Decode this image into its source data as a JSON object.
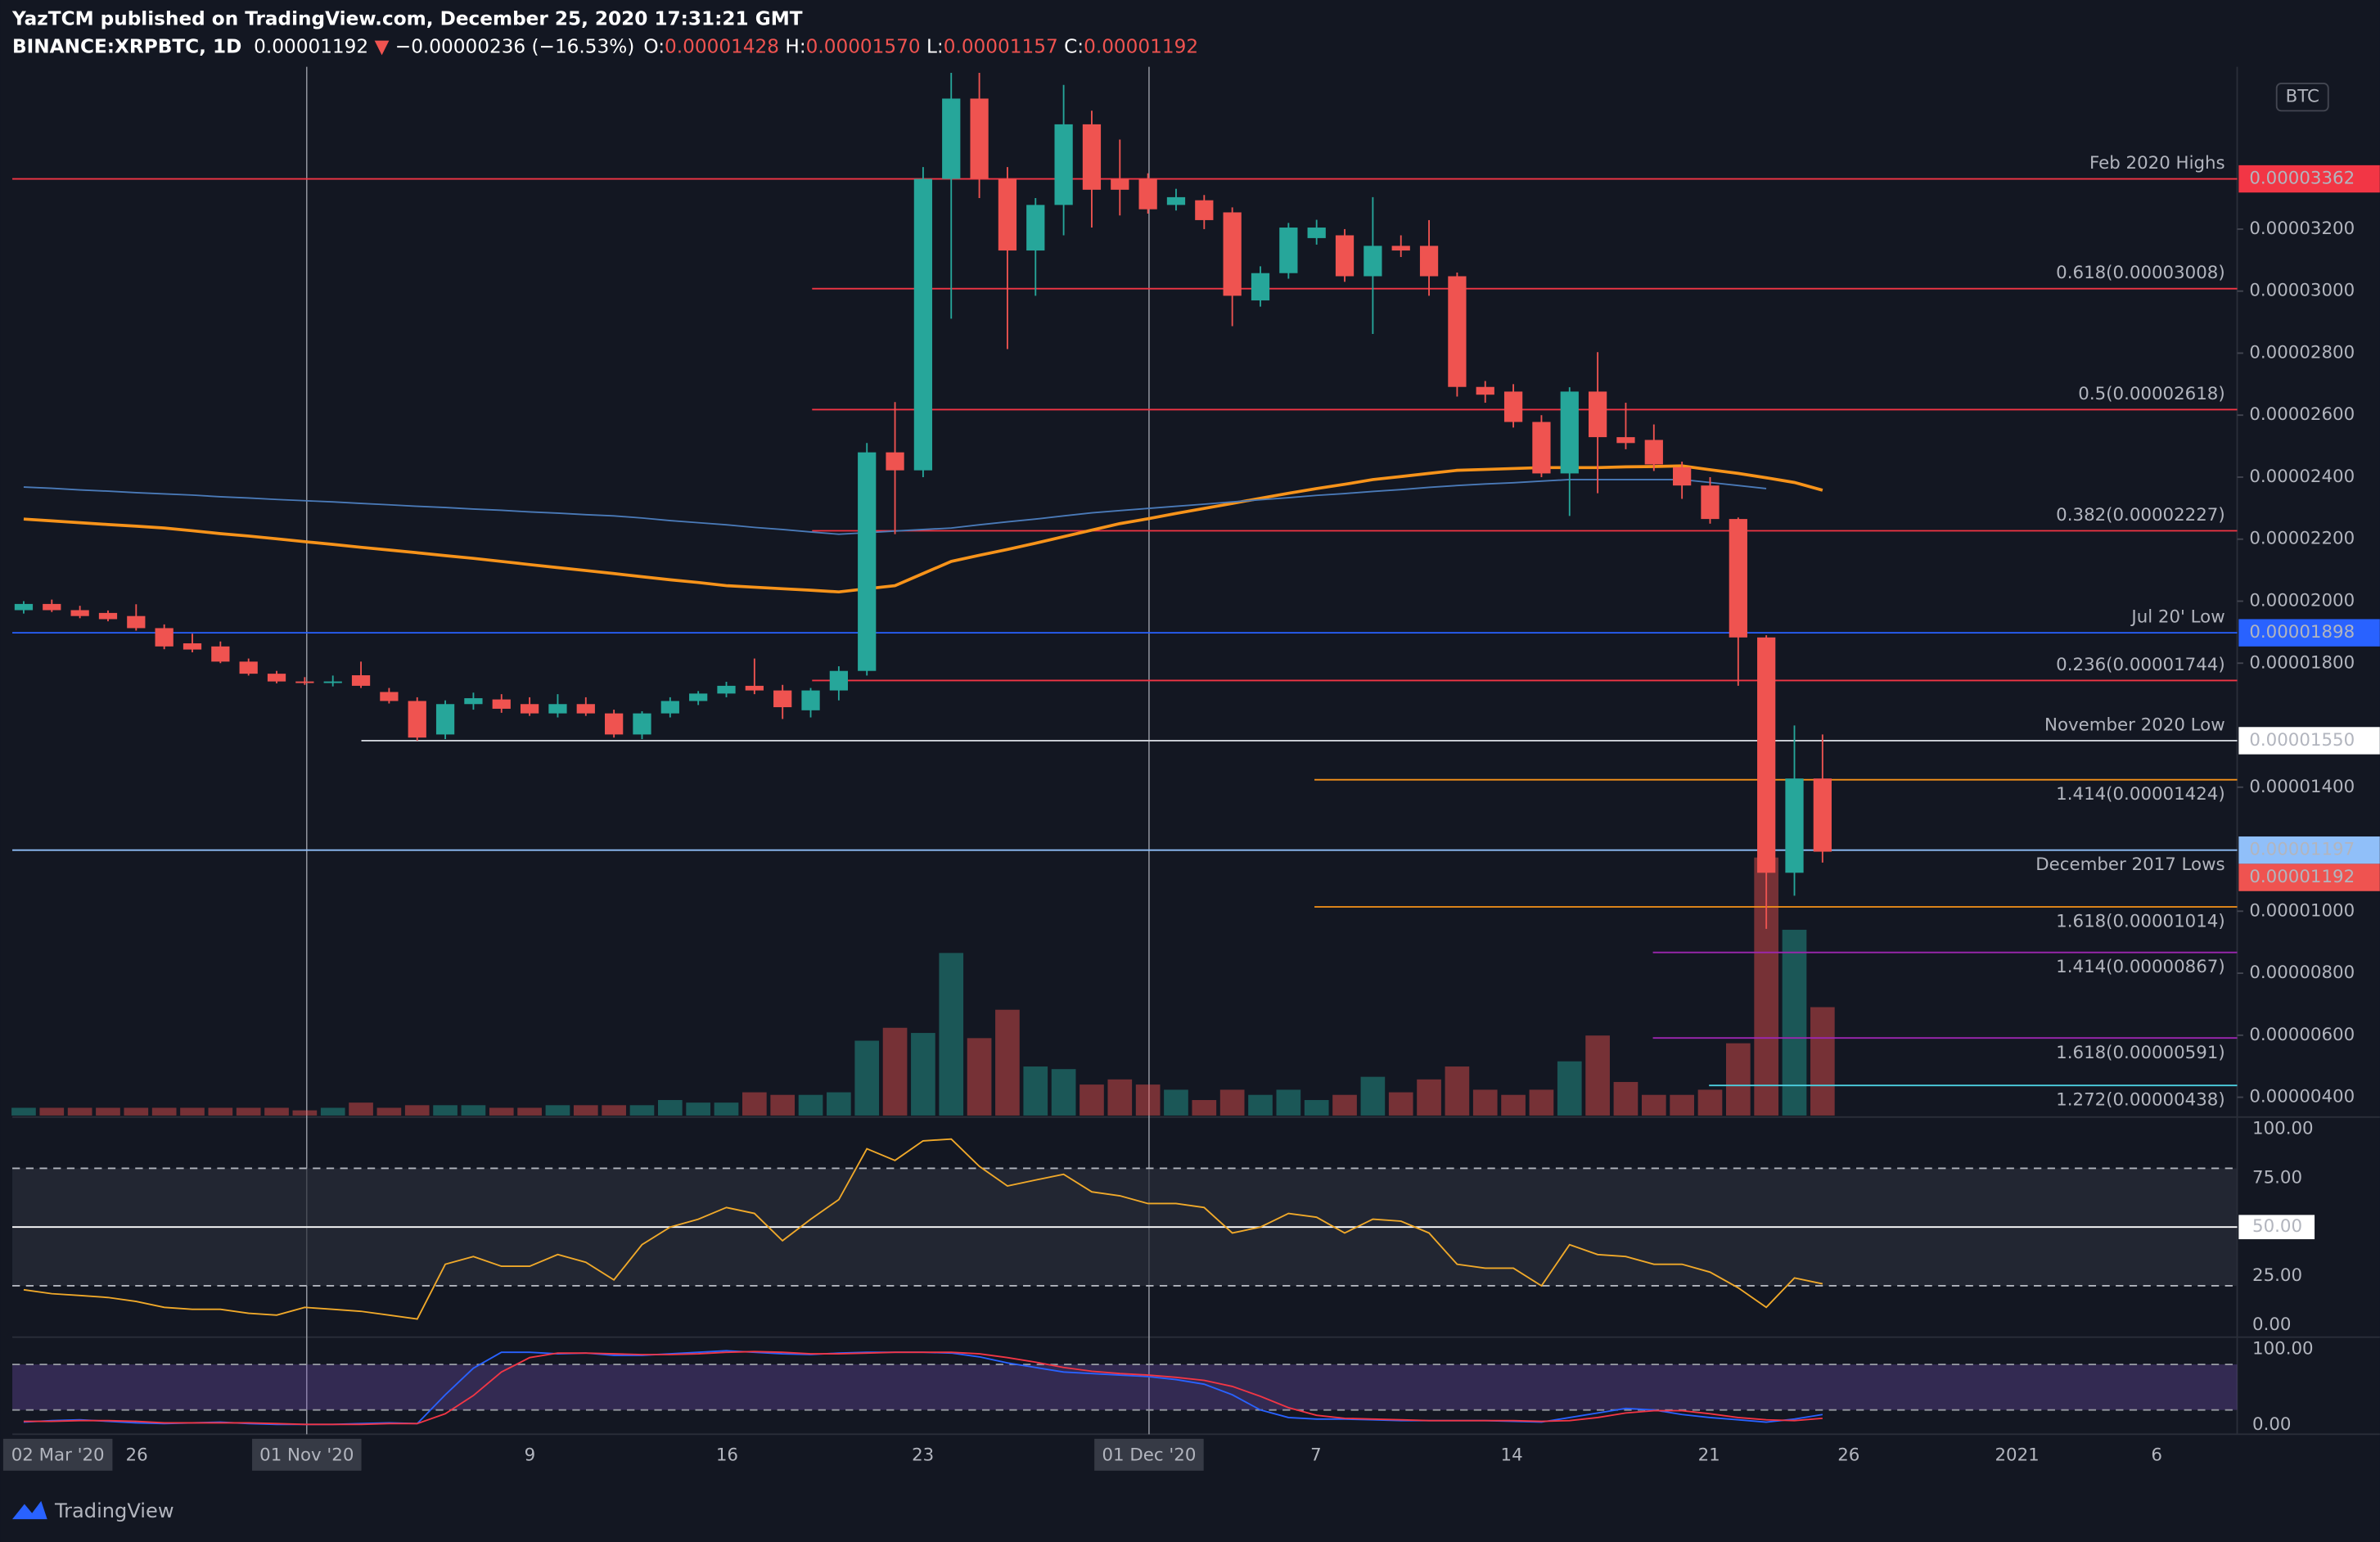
{
  "chart_data": {
    "type": "candlestick",
    "header": {
      "title": "YazTCM published on TradingView.com, December 25, 2020 17:31:21 GMT",
      "symbol": "BINANCE:XRPBTC, 1D",
      "last": "0.00001192",
      "arrow": "▼",
      "change": "−0.00000236 (−16.53%)",
      "ohlc": [
        {
          "key": "O:",
          "value": "0.00001428"
        },
        {
          "key": "H:",
          "value": "0.00001570"
        },
        {
          "key": "L:",
          "value": "0.00001157"
        },
        {
          "key": "C:",
          "value": "0.00001192"
        }
      ]
    },
    "currency": "BTC",
    "logo": "TradingView",
    "x_labels": [
      "02 Mar '20",
      "26",
      "01 Nov '20",
      "9",
      "16",
      "23",
      "01 Dec '20",
      "7",
      "14",
      "21",
      "26",
      "2021",
      "6"
    ],
    "up_color": "#26a69a",
    "down_color": "#ef5350",
    "open": [
      1.971e-05,
      1.991e-05,
      1.971e-05,
      1.962e-05,
      1.952e-05,
      1.913e-05,
      1.864e-05,
      1.854e-05,
      1.805e-05,
      1.766e-05,
      1.741e-05,
      1.736e-05,
      1.761e-05,
      1.707e-05,
      1.678e-05,
      1.57e-05,
      1.668e-05,
      1.683e-05,
      1.668e-05,
      1.638e-05,
      1.668e-05,
      1.638e-05,
      1.57e-05,
      1.638e-05,
      1.678e-05,
      1.702e-05,
      1.727e-05,
      1.712e-05,
      1.648e-05,
      1.712e-05,
      1.775e-05,
      2.48e-05,
      2.422e-05,
      3.362e-05,
      3.621e-05,
      3.362e-05,
      3.131e-05,
      3.278e-05,
      3.538e-05,
      3.362e-05,
      3.362e-05,
      3.278e-05,
      3.293e-05,
      3.254e-05,
      2.97e-05,
      3.058e-05,
      3.171e-05,
      3.18e-05,
      3.048e-05,
      3.146e-05,
      3.146e-05,
      3.048e-05,
      2.691e-05,
      2.676e-05,
      2.578e-05,
      2.412e-05,
      2.676e-05,
      2.529e-05,
      2.52e-05,
      2.432e-05,
      2.373e-05,
      2.265e-05,
      1.883e-05,
      1.124e-05,
      1.428e-05
    ],
    "high": [
      2e-05,
      2.005e-05,
      1.985e-05,
      1.97e-05,
      1.99e-05,
      1.925e-05,
      1.895e-05,
      1.87e-05,
      1.815e-05,
      1.775e-05,
      1.755e-05,
      1.76e-05,
      1.805e-05,
      1.72e-05,
      1.69e-05,
      1.68e-05,
      1.705e-05,
      1.7e-05,
      1.69e-05,
      1.7e-05,
      1.69e-05,
      1.65e-05,
      1.645e-05,
      1.69e-05,
      1.71e-05,
      1.74e-05,
      1.815e-05,
      1.73e-05,
      1.72e-05,
      1.79e-05,
      2.51e-05,
      2.642e-05,
      3.4e-05,
      3.704e-05,
      3.704e-05,
      3.4e-05,
      3.3e-05,
      3.665e-05,
      3.582e-05,
      3.489e-05,
      3.38e-05,
      3.33e-05,
      3.31e-05,
      3.27e-05,
      3.08e-05,
      3.22e-05,
      3.23e-05,
      3.2e-05,
      3.303e-05,
      3.18e-05,
      3.229e-05,
      3.06e-05,
      2.71e-05,
      2.7e-05,
      2.6e-05,
      2.69e-05,
      2.803e-05,
      2.64e-05,
      2.57e-05,
      2.45e-05,
      2.4e-05,
      2.27e-05,
      1.89e-05,
      1.599e-05,
      1.57e-05
    ],
    "low": [
      1.96e-05,
      1.965e-05,
      1.945e-05,
      1.935e-05,
      1.905e-05,
      1.845e-05,
      1.835e-05,
      1.8e-05,
      1.76e-05,
      1.735e-05,
      1.73e-05,
      1.725e-05,
      1.72e-05,
      1.67e-05,
      1.55e-05,
      1.555e-05,
      1.65e-05,
      1.64e-05,
      1.63e-05,
      1.625e-05,
      1.63e-05,
      1.56e-05,
      1.555e-05,
      1.625e-05,
      1.665e-05,
      1.69e-05,
      1.7e-05,
      1.62e-05,
      1.625e-05,
      1.68e-05,
      1.76e-05,
      2.216e-05,
      2.4e-05,
      2.911e-05,
      3.3e-05,
      2.813e-05,
      2.985e-05,
      3.18e-05,
      3.205e-05,
      3.244e-05,
      3.25e-05,
      3.26e-05,
      3.2e-05,
      2.887e-05,
      2.95e-05,
      3.04e-05,
      3.15e-05,
      3.03e-05,
      2.862e-05,
      3.11e-05,
      2.985e-05,
      2.66e-05,
      2.64e-05,
      2.56e-05,
      2.4e-05,
      2.275e-05,
      2.348e-05,
      2.49e-05,
      2.42e-05,
      2.33e-05,
      2.25e-05,
      1.727e-05,
      9.43e-06,
      1.05e-05,
      1.157e-05
    ],
    "close": [
      1.991e-05,
      1.971e-05,
      1.952e-05,
      1.942e-05,
      1.913e-05,
      1.854e-05,
      1.844e-05,
      1.805e-05,
      1.766e-05,
      1.741e-05,
      1.736e-05,
      1.741e-05,
      1.727e-05,
      1.678e-05,
      1.56e-05,
      1.668e-05,
      1.687e-05,
      1.653e-05,
      1.638e-05,
      1.668e-05,
      1.638e-05,
      1.57e-05,
      1.638e-05,
      1.678e-05,
      1.702e-05,
      1.727e-05,
      1.712e-05,
      1.658e-05,
      1.712e-05,
      1.775e-05,
      2.48e-05,
      2.422e-05,
      3.362e-05,
      3.621e-05,
      3.362e-05,
      3.131e-05,
      3.278e-05,
      3.538e-05,
      3.327e-05,
      3.327e-05,
      3.264e-05,
      3.303e-05,
      3.229e-05,
      2.985e-05,
      3.058e-05,
      3.205e-05,
      3.205e-05,
      3.048e-05,
      3.146e-05,
      3.131e-05,
      3.048e-05,
      2.691e-05,
      2.666e-05,
      2.578e-05,
      2.412e-05,
      2.676e-05,
      2.529e-05,
      2.51e-05,
      2.441e-05,
      2.373e-05,
      2.265e-05,
      1.883e-05,
      1.124e-05,
      1.428e-05,
      1.192e-05
    ],
    "moving_averages": [
      {
        "color": "#f7931a",
        "values": [
          2.265e-05,
          2.259e-05,
          2.253e-05,
          2.247e-05,
          2.242e-05,
          2.236e-05,
          2.227e-05,
          2.218e-05,
          2.21e-05,
          2.201e-05,
          2.192e-05,
          2.183e-05,
          2.174e-05,
          2.165e-05,
          2.156e-05,
          2.147e-05,
          2.138e-05,
          2.128e-05,
          2.118e-05,
          2.108e-05,
          2.099e-05,
          2.089e-05,
          2.079e-05,
          2.069e-05,
          2.06e-05,
          2.05e-05,
          2.045e-05,
          2.04e-05,
          2.035e-05,
          2.03e-05,
          2.04e-05,
          2.05e-05,
          2.089e-05,
          2.128e-05,
          2.148e-05,
          2.167e-05,
          2.187e-05,
          2.208e-05,
          2.229e-05,
          2.25e-05,
          2.266e-05,
          2.283e-05,
          2.299e-05,
          2.315e-05,
          2.332e-05,
          2.348e-05,
          2.363e-05,
          2.377e-05,
          2.392e-05,
          2.402e-05,
          2.412e-05,
          2.422e-05,
          2.425e-05,
          2.428e-05,
          2.431e-05,
          2.431e-05,
          2.431e-05,
          2.433e-05,
          2.434e-05,
          2.436e-05,
          2.424e-05,
          2.412e-05,
          2.398e-05,
          2.383e-05,
          2.358e-05
        ]
      },
      {
        "color": "#4a7ab8",
        "values": [
          2.368e-05,
          2.364e-05,
          2.359e-05,
          2.355e-05,
          2.35e-05,
          2.346e-05,
          2.342e-05,
          2.337e-05,
          2.333e-05,
          2.328e-05,
          2.324e-05,
          2.32e-05,
          2.315e-05,
          2.311e-05,
          2.306e-05,
          2.302e-05,
          2.297e-05,
          2.293e-05,
          2.288e-05,
          2.284e-05,
          2.279e-05,
          2.275e-05,
          2.268e-05,
          2.26e-05,
          2.253e-05,
          2.246e-05,
          2.238e-05,
          2.231e-05,
          2.223e-05,
          2.216e-05,
          2.221e-05,
          2.226e-05,
          2.231e-05,
          2.236e-05,
          2.246e-05,
          2.256e-05,
          2.265e-05,
          2.275e-05,
          2.285e-05,
          2.292e-05,
          2.299e-05,
          2.306e-05,
          2.313e-05,
          2.32e-05,
          2.327e-05,
          2.334e-05,
          2.341e-05,
          2.347e-05,
          2.354e-05,
          2.36e-05,
          2.367e-05,
          2.373e-05,
          2.378e-05,
          2.382e-05,
          2.387e-05,
          2.392e-05,
          2.392e-05,
          2.392e-05,
          2.392e-05,
          2.392e-05,
          2.383e-05,
          2.373e-05,
          2.363e-05,
          null,
          null
        ]
      }
    ],
    "ylim": [
      3.41e-06,
      3.704e-05
    ],
    "yticks": [
      {
        "value": 3.2e-05,
        "label": "0.00003200"
      },
      {
        "value": 3e-05,
        "label": "0.00003000"
      },
      {
        "value": 2.8e-05,
        "label": "0.00002800"
      },
      {
        "value": 2.6e-05,
        "label": "0.00002600"
      },
      {
        "value": 2.4e-05,
        "label": "0.00002400"
      },
      {
        "value": 2.2e-05,
        "label": "0.00002200"
      },
      {
        "value": 2e-05,
        "label": "0.00002000"
      },
      {
        "value": 1.8e-05,
        "label": "0.00001800"
      },
      {
        "value": 1.4e-05,
        "label": "0.00001400"
      },
      {
        "value": 1e-05,
        "label": "0.00001000"
      },
      {
        "value": 8e-06,
        "label": "0.00000800"
      },
      {
        "value": 6e-06,
        "label": "0.00000600"
      },
      {
        "value": 4e-06,
        "label": "0.00000400"
      }
    ],
    "grid": false,
    "levels": [
      {
        "label": "Feb 2020 Highs",
        "value": 3.362e-05,
        "color": "#f23645",
        "price_label": "0.00003362",
        "box_color": "#f23645"
      },
      {
        "label": "0.618(0.00003008)",
        "value": 3.008e-05,
        "color": "#f23645"
      },
      {
        "label": "0.5(0.00002618)",
        "value": 2.618e-05,
        "color": "#f23645"
      },
      {
        "label": "0.382(0.00002227)",
        "value": 2.227e-05,
        "color": "#f23645"
      },
      {
        "label": "Jul 20' Low",
        "value": 1.898e-05,
        "color": "#2962ff",
        "price_label": "0.00001898",
        "box_color": "#2962ff"
      },
      {
        "label": "0.236(0.00001744)",
        "value": 1.744e-05,
        "color": "#f23645"
      },
      {
        "label": "November 2020 Low",
        "value": 1.55e-05,
        "color": "#d1d4dc",
        "price_label": "0.00001550",
        "box_color": "#ffffff"
      },
      {
        "label": "1.414(0.00001424)",
        "value": 1.424e-05,
        "color": "#f7931a"
      },
      {
        "label": "December 2017 Lows",
        "value": 1.197e-05,
        "color": "#90bff9",
        "price_label": "0.00001197",
        "box_color": "#90bff9"
      },
      {
        "label": "1.618(0.00001014)",
        "value": 1.014e-05,
        "color": "#f7931a"
      },
      {
        "label": "1.414(0.00000867)",
        "value": 8.67e-06,
        "color": "#9c27b0"
      },
      {
        "label": "1.618(0.00000591)",
        "value": 5.91e-06,
        "color": "#9c27b0"
      },
      {
        "label": "1.272(0.00000438)",
        "value": 4.38e-06,
        "color": "#4dd0e1"
      }
    ],
    "last_price": {
      "value": 1.192e-05,
      "label": "0.00001192",
      "color": "#ef5350"
    },
    "volume": {
      "ylim": [
        0,
        100
      ],
      "values": [
        3,
        3,
        3,
        3,
        3,
        3,
        3,
        3,
        3,
        3,
        2,
        3,
        5,
        3,
        4,
        4,
        4,
        3,
        3,
        4,
        4,
        4,
        4,
        6,
        5,
        5,
        9,
        8,
        8,
        9,
        29,
        34,
        32,
        63,
        30,
        41,
        19,
        18,
        12,
        14,
        12,
        10,
        6,
        10,
        8,
        10,
        6,
        8,
        15,
        9,
        14,
        19,
        10,
        8,
        10,
        21,
        31,
        13,
        8,
        8,
        10,
        28,
        100,
        72,
        42
      ]
    },
    "rsi": {
      "color": "#f0a92a",
      "ylim": [
        0,
        100
      ],
      "bands": [
        20,
        80
      ],
      "midline": 50,
      "yticks": [
        {
          "value": 100,
          "label": "100.00"
        },
        {
          "value": 75,
          "label": "75.00"
        },
        {
          "value": 50,
          "label": "50.00"
        },
        {
          "value": 25,
          "label": "25.00"
        },
        {
          "value": 0,
          "label": "0.00"
        }
      ],
      "values": [
        18,
        16,
        15,
        14,
        12,
        9,
        8,
        8,
        6,
        5,
        9,
        8,
        7,
        5,
        3,
        31,
        35,
        30,
        30,
        36,
        32,
        23,
        41,
        50,
        54,
        60,
        57,
        43,
        54,
        64,
        90,
        84,
        94,
        95,
        81,
        71,
        74,
        77,
        68,
        66,
        62,
        62,
        60,
        47,
        50,
        57,
        55,
        47,
        54,
        53,
        47,
        31,
        29,
        29,
        20,
        41,
        36,
        35,
        31,
        31,
        27,
        19,
        9,
        24,
        21
      ]
    },
    "stoch_rsi": {
      "ylim": [
        0,
        100
      ],
      "bands": [
        20,
        80
      ],
      "yticks": [
        {
          "value": 100,
          "label": "100.00"
        },
        {
          "value": 0,
          "label": "0.00"
        }
      ],
      "k": {
        "color": "#2962ff",
        "values": [
          4,
          6,
          7,
          5,
          3,
          2,
          3,
          4,
          2,
          1,
          1,
          1,
          2,
          3,
          2,
          40,
          75,
          96,
          96,
          94,
          95,
          92,
          92,
          94,
          96,
          98,
          96,
          94,
          93,
          95,
          96,
          96,
          96,
          95,
          90,
          82,
          76,
          70,
          68,
          66,
          64,
          60,
          54,
          40,
          20,
          10,
          8,
          8,
          7,
          6,
          6,
          6,
          6,
          5,
          4,
          10,
          16,
          22,
          20,
          14,
          10,
          7,
          4,
          8,
          14
        ]
      },
      "d": {
        "color": "#f23645",
        "values": [
          5,
          5,
          6,
          6,
          5,
          3,
          3,
          3,
          3,
          2,
          1,
          1,
          1,
          2,
          2,
          15,
          39,
          70,
          89,
          95,
          95,
          94,
          93,
          93,
          94,
          96,
          97,
          96,
          94,
          94,
          95,
          96,
          96,
          96,
          94,
          89,
          83,
          76,
          71,
          68,
          66,
          63,
          59,
          51,
          38,
          23,
          13,
          9,
          8,
          7,
          6,
          6,
          6,
          6,
          5,
          6,
          10,
          16,
          19,
          19,
          15,
          10,
          7,
          6,
          9
        ]
      }
    }
  }
}
